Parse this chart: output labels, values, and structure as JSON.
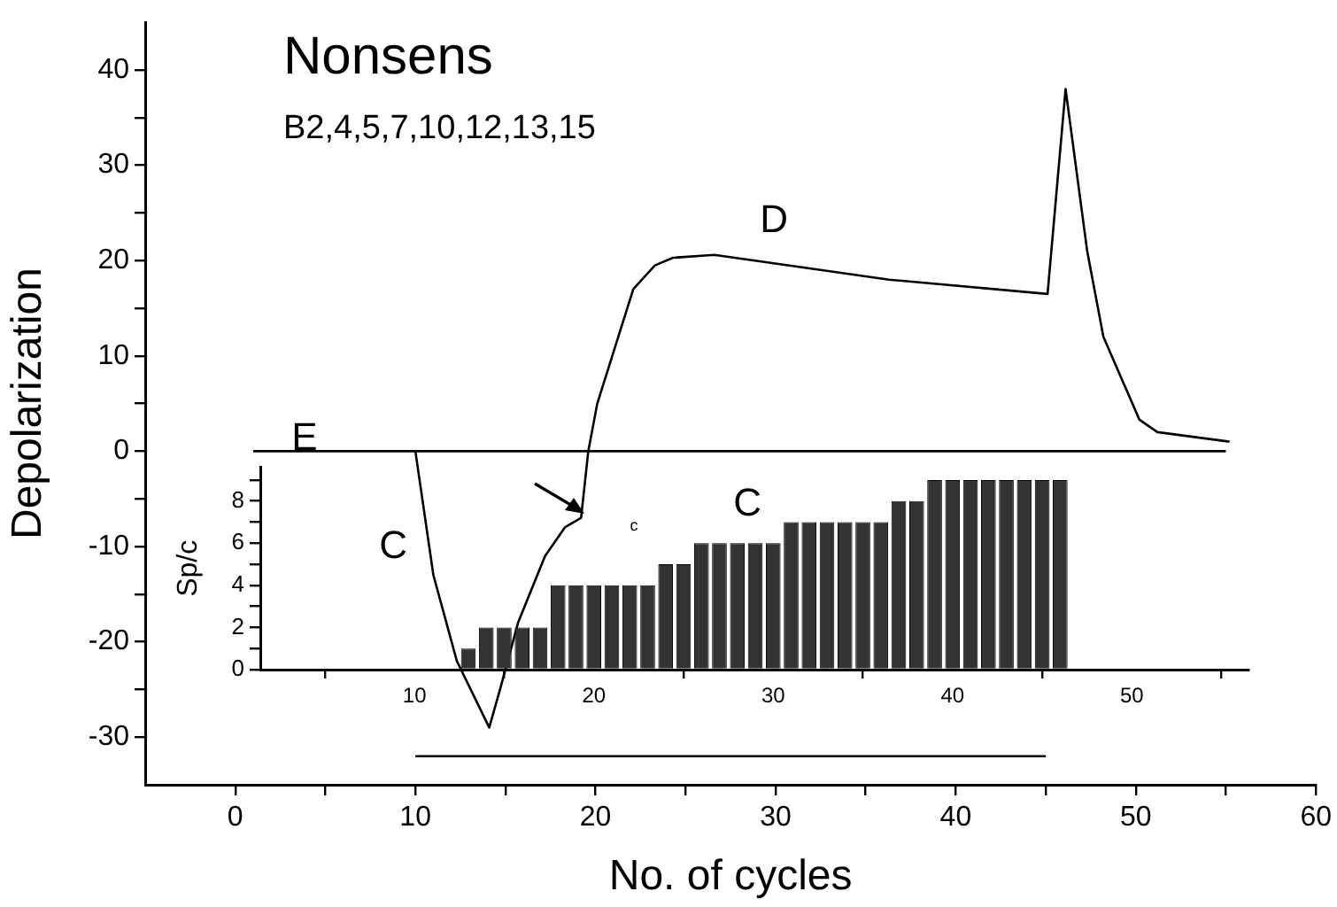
{
  "chart_data": [
    {
      "type": "line",
      "title": "Nonsens",
      "subtitle": "B2,4,5,7,10,12,13,15",
      "xlabel": "No. of cycles",
      "ylabel": "Depolarization",
      "series": [
        {
          "color": "#000000",
          "x": [
            10,
            11,
            12.3,
            14.1,
            14.7,
            15.7,
            17.2,
            18.3,
            19.2,
            19.6,
            20.1,
            22.1,
            23.3,
            24.3,
            26.6,
            36.3,
            45.1,
            46.1,
            47.3,
            48.2,
            50.2,
            51.2,
            55.2
          ],
          "values": [
            0,
            -13,
            -22,
            -29,
            -25,
            -18,
            -11,
            -8,
            -7,
            0,
            5,
            17,
            19.5,
            20.3,
            20.6,
            18,
            16.5,
            38,
            21,
            12,
            3.3,
            2,
            1
          ]
        },
        {
          "color": "#000000",
          "x": [
            1,
            55
          ],
          "values": [
            0,
            0
          ]
        },
        {
          "color": "#000000",
          "x": [
            10,
            45
          ],
          "values": [
            -32,
            -32
          ]
        }
      ],
      "xlim": [
        -5,
        60
      ],
      "xticks": [
        0,
        {
          "value": 5,
          "label": null
        },
        10,
        {
          "value": 15,
          "label": null
        },
        20,
        {
          "value": 25,
          "label": null
        },
        30,
        {
          "value": 35,
          "label": null
        },
        40,
        {
          "value": 45,
          "label": null
        },
        50,
        {
          "value": 55,
          "label": null
        },
        60
      ],
      "ylim": [
        -35,
        45
      ],
      "yticks": [
        -30,
        {
          "value": -25,
          "label": null
        },
        -20,
        {
          "value": -15,
          "label": null
        },
        -10,
        {
          "value": -5,
          "label": null
        },
        0,
        {
          "value": 5,
          "label": null
        },
        10,
        {
          "value": 15,
          "label": null
        },
        20,
        {
          "value": 25,
          "label": null
        },
        30,
        {
          "value": 35,
          "label": null
        },
        40
      ],
      "annotations": [
        "D",
        "E",
        "C",
        "C",
        "c"
      ],
      "grid": false,
      "legend": false,
      "marker": "none",
      "line_style": "solid"
    },
    {
      "type": "bar",
      "ylabel": "Sp/c",
      "color": "#333333",
      "x": [
        13,
        14,
        15,
        16,
        17,
        18,
        19,
        20,
        21,
        22,
        23,
        24,
        25,
        26,
        27,
        28,
        29,
        30,
        31,
        32,
        33,
        34,
        35,
        36,
        37,
        38,
        39,
        40,
        41,
        42,
        43,
        44,
        45,
        46
      ],
      "values": [
        1,
        2,
        2,
        2,
        2,
        4,
        4,
        4,
        4,
        4,
        4,
        5,
        5,
        6,
        6,
        6,
        6,
        6,
        7,
        7,
        7,
        7,
        7,
        7,
        8,
        8,
        9,
        9,
        9,
        9,
        9,
        9,
        9,
        9
      ],
      "xlim": [
        1.4,
        56.5
      ],
      "xticks": [
        10,
        20,
        30,
        40,
        50
      ],
      "ylim": [
        0,
        9.6
      ],
      "yticks": [
        0,
        {
          "value": 1,
          "label": null
        },
        2,
        {
          "value": 3,
          "label": null
        },
        4,
        {
          "value": 5,
          "label": null
        },
        6,
        {
          "value": 7,
          "label": null
        },
        8,
        {
          "value": 9,
          "label": null
        }
      ],
      "grid": false,
      "legend": false
    }
  ]
}
